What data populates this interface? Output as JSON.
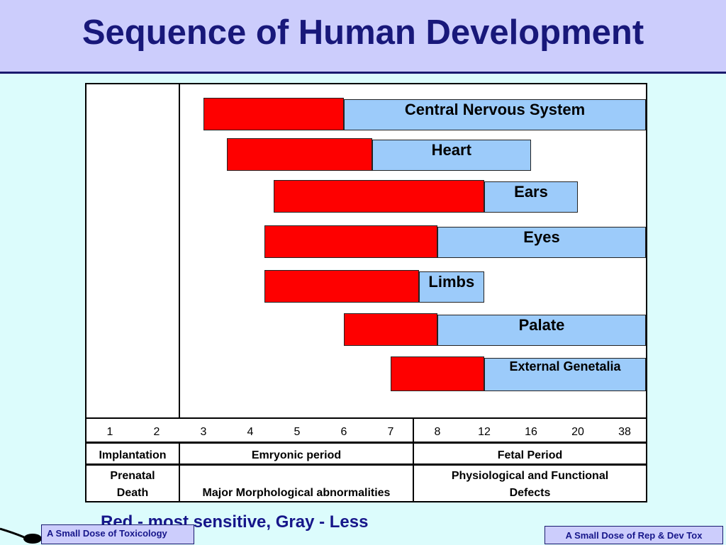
{
  "title": "Sequence of Human Development",
  "chart_data": {
    "type": "bar",
    "x_ticks": [
      "1",
      "2",
      "3",
      "4",
      "5",
      "6",
      "7",
      "8",
      "12",
      "16",
      "20",
      "38"
    ],
    "series": [
      {
        "name": "Red - most sensitive"
      },
      {
        "name": "Gray - Less"
      }
    ],
    "bars": [
      {
        "label": "Central Nervous System",
        "red": [
          "3",
          "6"
        ],
        "blue": [
          "6",
          "38"
        ]
      },
      {
        "label": "Heart",
        "red": [
          "3.5",
          "6.6"
        ],
        "blue": [
          "6.6",
          "16"
        ]
      },
      {
        "label": "Ears",
        "red": [
          "4.5",
          "12"
        ],
        "blue": [
          "12",
          "20"
        ]
      },
      {
        "label": "Eyes",
        "red": [
          "4.3",
          "8"
        ],
        "blue": [
          "8",
          "38"
        ]
      },
      {
        "label": "Limbs",
        "red": [
          "4.3",
          "7.6"
        ],
        "blue": [
          "7.6",
          "12"
        ]
      },
      {
        "label": "Palate",
        "red": [
          "6",
          "8"
        ],
        "blue": [
          "8",
          "38"
        ]
      },
      {
        "label": "External Genetalia",
        "red": [
          "7",
          "12"
        ],
        "blue": [
          "12",
          "38"
        ]
      }
    ]
  },
  "rows": {
    "period": {
      "implantation": "Implantation",
      "embryonic": "Emryonic period",
      "fetal": "Fetal Period"
    },
    "effect": {
      "prenatal_line1": "Prenatal",
      "prenatal_line2": "Death",
      "major": "Major Morphological abnormalities",
      "physio_line1": "Physiological and Functional",
      "physio_line2": "Defects"
    }
  },
  "legend_note": "Red - most sensitive, Gray - Less",
  "footer": {
    "left": "A Small Dose of Toxicology",
    "right": "A Small Dose of Rep & Dev Tox"
  },
  "colors": {
    "red": "#fe0000",
    "blue": "#9ccbfa",
    "title": "#18187a",
    "background": "#dcfcfc",
    "header": "#cccdfc"
  }
}
